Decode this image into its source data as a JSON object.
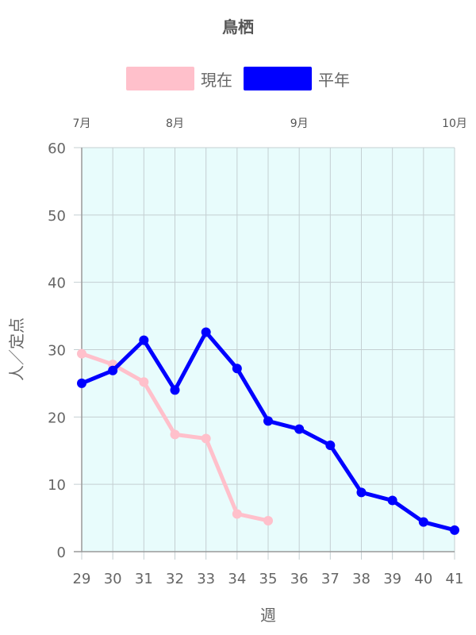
{
  "chart_data": {
    "type": "line",
    "title": "鳥栖",
    "xlabel": "週",
    "ylabel": "人／定点",
    "categories": [
      29,
      30,
      31,
      32,
      33,
      34,
      35,
      36,
      37,
      38,
      39,
      40,
      41
    ],
    "ylim": [
      0,
      60
    ],
    "yticks": [
      0,
      10,
      20,
      30,
      40,
      50,
      60
    ],
    "grid": true,
    "legend": "top",
    "plot_background": "#e8fcfc",
    "month_labels": [
      {
        "label": "7月",
        "week": 29
      },
      {
        "label": "8月",
        "week": 32
      },
      {
        "label": "9月",
        "week": 36
      },
      {
        "label": "10月",
        "week": 41
      }
    ],
    "series": [
      {
        "name": "現在",
        "color": "#ffc0cb",
        "values": [
          29.4,
          27.8,
          25.2,
          17.4,
          16.8,
          5.6,
          4.6,
          null,
          null,
          null,
          null,
          null,
          null
        ]
      },
      {
        "name": "平年",
        "color": "#0000ff",
        "values": [
          25.0,
          26.9,
          31.4,
          24.0,
          32.6,
          27.2,
          19.4,
          18.2,
          15.8,
          8.8,
          7.6,
          4.4,
          3.2
        ]
      }
    ]
  }
}
